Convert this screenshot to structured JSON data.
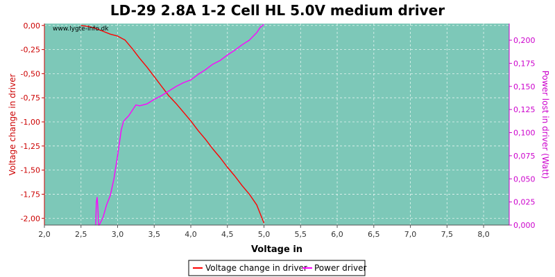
{
  "chart_data": {
    "type": "line",
    "title": "LD-29 2.8A 1-2 Cell HL 5.0V medium driver",
    "watermark": "www.lygte-info.dk",
    "xlabel": "Voltage in",
    "ylabel_left": "Voltage change in driver",
    "ylabel_right": "Power lost in driver (Watt)",
    "xlim": [
      2.0,
      8.35
    ],
    "ylim_left": [
      -2.07,
      0.02
    ],
    "ylim_right": [
      0.0,
      0.218
    ],
    "x_ticks": [
      "2,0",
      "2,5",
      "3,0",
      "3,5",
      "4,0",
      "4,5",
      "5,0",
      "5,5",
      "6,0",
      "6,5",
      "7,0",
      "7,5",
      "8,0"
    ],
    "x_tick_values": [
      2.0,
      2.5,
      3.0,
      3.5,
      4.0,
      4.5,
      5.0,
      5.5,
      6.0,
      6.5,
      7.0,
      7.5,
      8.0
    ],
    "y_left_ticks": [
      "0,00",
      "-0,25",
      "-0,50",
      "-0,75",
      "-1,00",
      "-1,25",
      "-1,50",
      "-1,75",
      "-2,00"
    ],
    "y_left_tick_values": [
      0.0,
      -0.25,
      -0.5,
      -0.75,
      -1.0,
      -1.25,
      -1.5,
      -1.75,
      -2.0
    ],
    "y_right_ticks": [
      "0,000",
      "0,025",
      "0,050",
      "0,075",
      "0,100",
      "0,125",
      "0,150",
      "0,175",
      "0,200"
    ],
    "y_right_tick_values": [
      0.0,
      0.025,
      0.05,
      0.075,
      0.1,
      0.125,
      0.15,
      0.175,
      0.2
    ],
    "grid": true,
    "legend_position": "bottom-center",
    "colors": {
      "plot_bg": "#7dc8b8",
      "voltage_series": "#ff0000",
      "power_series": "#ff00ff",
      "left_axis": "#cc0000",
      "right_axis": "#cc00cc"
    },
    "series": [
      {
        "name": "Voltage change in driver",
        "axis": "left",
        "x": [
          2.5,
          2.6,
          2.7,
          2.8,
          2.9,
          3.0,
          3.1,
          3.2,
          3.3,
          3.4,
          3.5,
          3.6,
          3.7,
          3.8,
          3.9,
          4.0,
          4.1,
          4.2,
          4.3,
          4.4,
          4.5,
          4.6,
          4.7,
          4.8,
          4.9,
          5.0
        ],
        "y": [
          0.0,
          -0.01,
          -0.03,
          -0.06,
          -0.09,
          -0.11,
          -0.15,
          -0.24,
          -0.34,
          -0.43,
          -0.53,
          -0.63,
          -0.73,
          -0.81,
          -0.9,
          -0.99,
          -1.09,
          -1.18,
          -1.28,
          -1.37,
          -1.47,
          -1.56,
          -1.66,
          -1.75,
          -1.86,
          -2.05
        ]
      },
      {
        "name": "Power driver",
        "axis": "right",
        "x": [
          2.7,
          2.71,
          2.72,
          2.73,
          2.74,
          2.75,
          2.8,
          2.85,
          2.9,
          2.95,
          3.0,
          3.05,
          3.08,
          3.1,
          3.15,
          3.2,
          3.25,
          3.3,
          3.4,
          3.5,
          3.6,
          3.7,
          3.8,
          3.9,
          4.0,
          4.1,
          4.2,
          4.3,
          4.4,
          4.5,
          4.6,
          4.7,
          4.8,
          4.9,
          4.95,
          5.0
        ],
        "y": [
          0.0,
          0.025,
          0.03,
          0.02,
          0.0,
          0.0,
          0.008,
          0.022,
          0.032,
          0.05,
          0.075,
          0.103,
          0.112,
          0.114,
          0.118,
          0.124,
          0.13,
          0.129,
          0.131,
          0.136,
          0.14,
          0.145,
          0.15,
          0.154,
          0.157,
          0.163,
          0.168,
          0.174,
          0.178,
          0.184,
          0.189,
          0.195,
          0.2,
          0.208,
          0.214,
          0.217
        ]
      }
    ]
  }
}
